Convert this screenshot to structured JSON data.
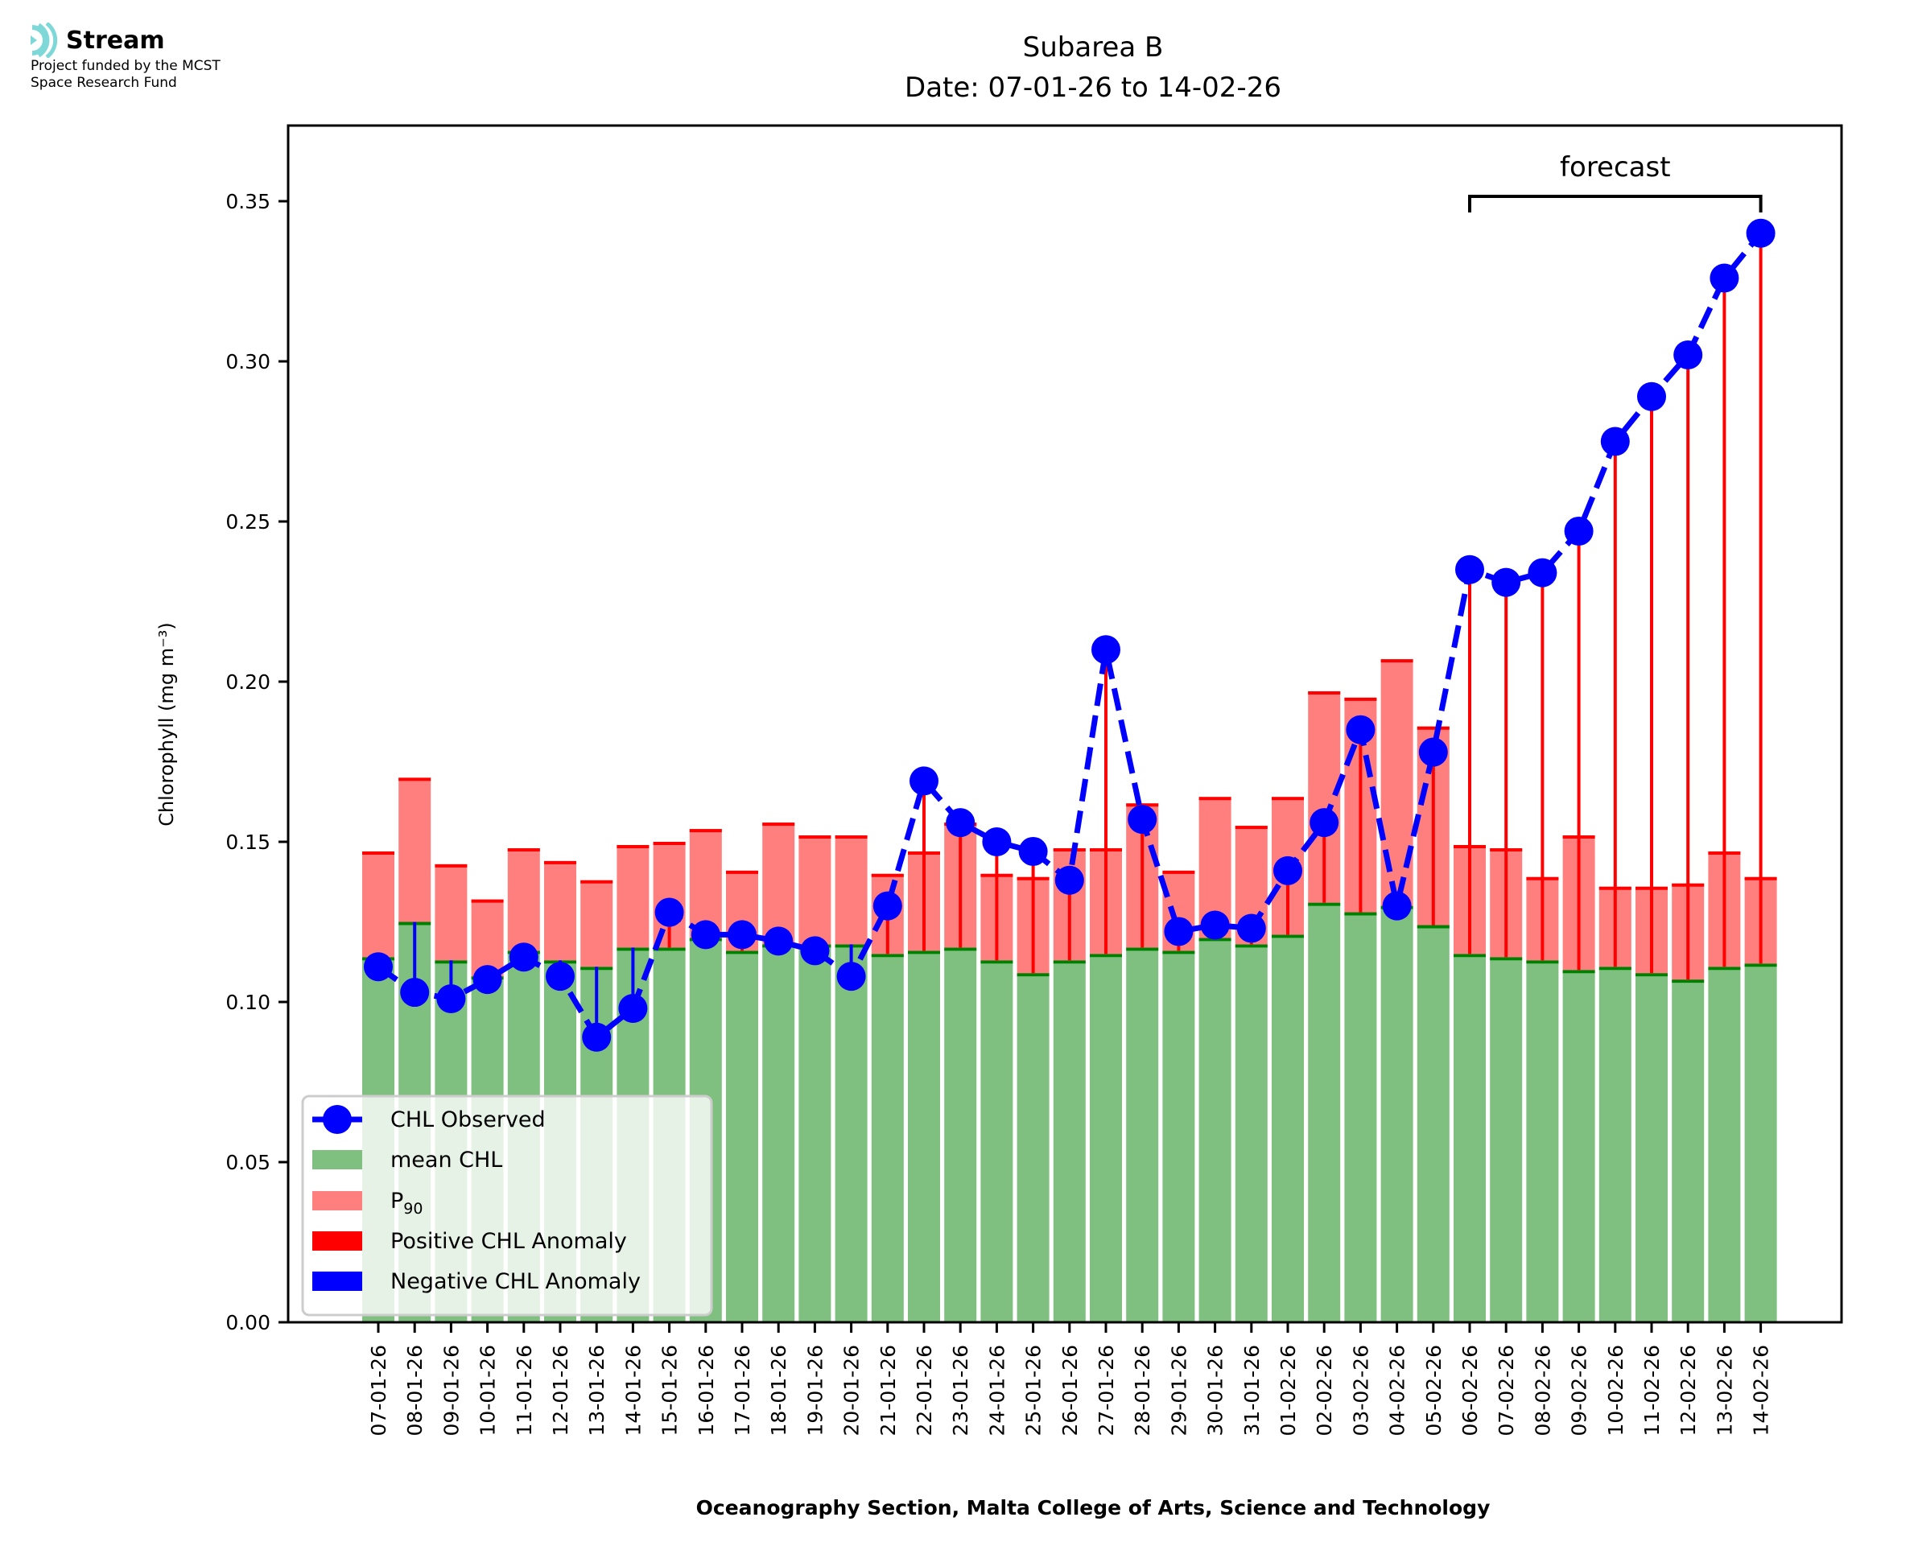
{
  "logo": {
    "name": "Stream",
    "icon": "stream-waves-icon",
    "subtitle_line1": "Project funded by the MCST",
    "subtitle_line2": "Space Research Fund",
    "icon_color": "#7fd8d8"
  },
  "chart_data": {
    "type": "bar",
    "title": "Subarea B",
    "subtitle": "Date: 07-01-26 to 14-02-26",
    "xlabel": "Oceanography Section, Malta College of Arts, Science and Technology",
    "ylabel": "Chlorophyll (mg m⁻³)",
    "ylim": [
      0,
      0.372
    ],
    "yticks": [
      0.0,
      0.05,
      0.1,
      0.15,
      0.2,
      0.25,
      0.3,
      0.35
    ],
    "ytick_labels": [
      "0.00",
      "0.05",
      "0.10",
      "0.15",
      "0.20",
      "0.25",
      "0.30",
      "0.35"
    ],
    "grid": false,
    "categories": [
      "07-01-26",
      "08-01-26",
      "09-01-26",
      "10-01-26",
      "11-01-26",
      "12-01-26",
      "13-01-26",
      "14-01-26",
      "15-01-26",
      "16-01-26",
      "17-01-26",
      "18-01-26",
      "19-01-26",
      "20-01-26",
      "21-01-26",
      "22-01-26",
      "23-01-26",
      "24-01-26",
      "25-01-26",
      "26-01-26",
      "27-01-26",
      "28-01-26",
      "29-01-26",
      "30-01-26",
      "31-01-26",
      "01-02-26",
      "02-02-26",
      "03-02-26",
      "04-02-26",
      "05-02-26",
      "06-02-26",
      "07-02-26",
      "08-02-26",
      "09-02-26",
      "10-02-26",
      "11-02-26",
      "12-02-26",
      "13-02-26",
      "14-02-26"
    ],
    "series": [
      {
        "name": "mean CHL",
        "kind": "bar",
        "color": "#7fbf7f",
        "edge_color": "#008000",
        "values": [
          0.114,
          0.125,
          0.113,
          0.108,
          0.116,
          0.113,
          0.111,
          0.117,
          0.117,
          0.12,
          0.116,
          0.118,
          0.118,
          0.118,
          0.115,
          0.116,
          0.117,
          0.113,
          0.109,
          0.113,
          0.115,
          0.117,
          0.116,
          0.12,
          0.118,
          0.121,
          0.131,
          0.128,
          0.13,
          0.124,
          0.115,
          0.114,
          0.113,
          0.11,
          0.111,
          0.109,
          0.107,
          0.111,
          0.112
        ]
      },
      {
        "name": "P₉₀",
        "kind": "bar",
        "color": "#ff7f7f",
        "edge_color": "#ff0000",
        "values": [
          0.147,
          0.17,
          0.143,
          0.132,
          0.148,
          0.144,
          0.138,
          0.149,
          0.15,
          0.154,
          0.141,
          0.156,
          0.152,
          0.152,
          0.14,
          0.147,
          0.156,
          0.14,
          0.139,
          0.148,
          0.148,
          0.162,
          0.141,
          0.164,
          0.155,
          0.164,
          0.197,
          0.195,
          0.207,
          0.186,
          0.149,
          0.148,
          0.139,
          0.152,
          0.136,
          0.136,
          0.137,
          0.147,
          0.139
        ]
      },
      {
        "name": "CHL Observed",
        "kind": "line",
        "color": "#0000ff",
        "values": [
          0.111,
          0.103,
          0.101,
          0.107,
          0.114,
          0.108,
          0.089,
          0.098,
          0.128,
          0.121,
          0.121,
          0.119,
          0.116,
          0.108,
          0.13,
          0.169,
          0.156,
          0.15,
          0.147,
          0.138,
          0.21,
          0.157,
          0.122,
          0.124,
          0.123,
          0.141,
          0.156,
          0.185,
          0.13,
          0.178,
          0.235,
          0.231,
          0.234,
          0.247,
          0.275,
          0.289,
          0.302,
          0.326,
          0.34
        ]
      }
    ],
    "anomaly_legend": {
      "positive": {
        "name": "Positive CHL Anomaly",
        "color": "#ff0000"
      },
      "negative": {
        "name": "Negative CHL Anomaly",
        "color": "#0000ff"
      }
    },
    "legend": {
      "position": "lower-left",
      "entries": [
        "CHL Observed",
        "mean CHL",
        "P",
        "Positive CHL Anomaly",
        "Negative CHL Anomaly"
      ],
      "p90_subscript": "90"
    },
    "annotation": {
      "text": "forecast",
      "from": "06-02-26",
      "to": "14-02-26",
      "bracket_value": 0.352
    }
  }
}
